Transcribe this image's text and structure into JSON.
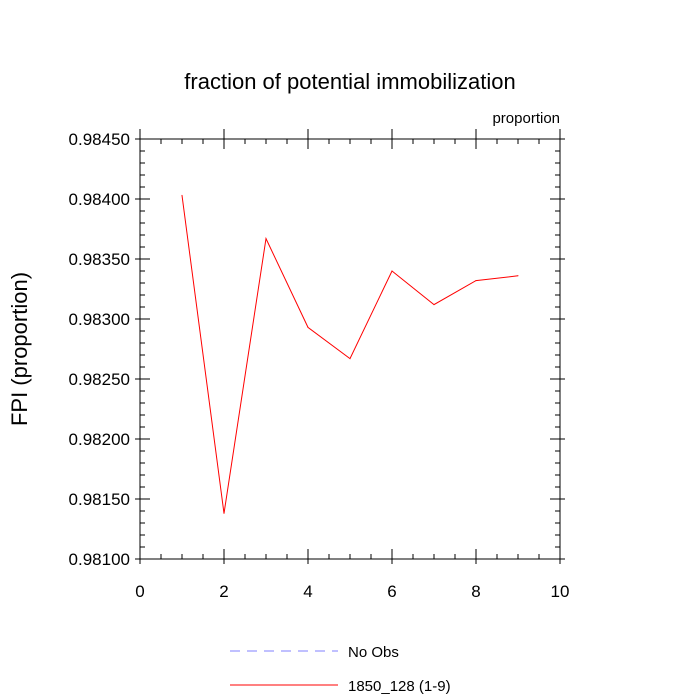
{
  "chart_data": {
    "type": "line",
    "title": "fraction of potential immobilization",
    "units_label": "proportion",
    "ylabel": "FPI  (proportion)",
    "xlabel": "",
    "xlim": [
      0,
      10
    ],
    "ylim": [
      0.981,
      0.9845
    ],
    "x_ticks": [
      "0",
      "2",
      "4",
      "6",
      "8",
      "10"
    ],
    "y_ticks": [
      "0.98100",
      "0.98150",
      "0.98200",
      "0.98250",
      "0.98300",
      "0.98350",
      "0.98400",
      "0.98450"
    ],
    "grid": false,
    "legend_position": "bottom",
    "series": [
      {
        "name": "No Obs",
        "style": "dashed",
        "color": "#8080ff",
        "x": [],
        "y": []
      },
      {
        "name": "1850_128 (1-9)",
        "style": "solid",
        "color": "#ff0000",
        "x": [
          1,
          2,
          3,
          4,
          5,
          6,
          7,
          8,
          9
        ],
        "y": [
          0.98403,
          0.98138,
          0.98367,
          0.98293,
          0.98267,
          0.9834,
          0.98312,
          0.98332,
          0.98336
        ]
      }
    ]
  }
}
